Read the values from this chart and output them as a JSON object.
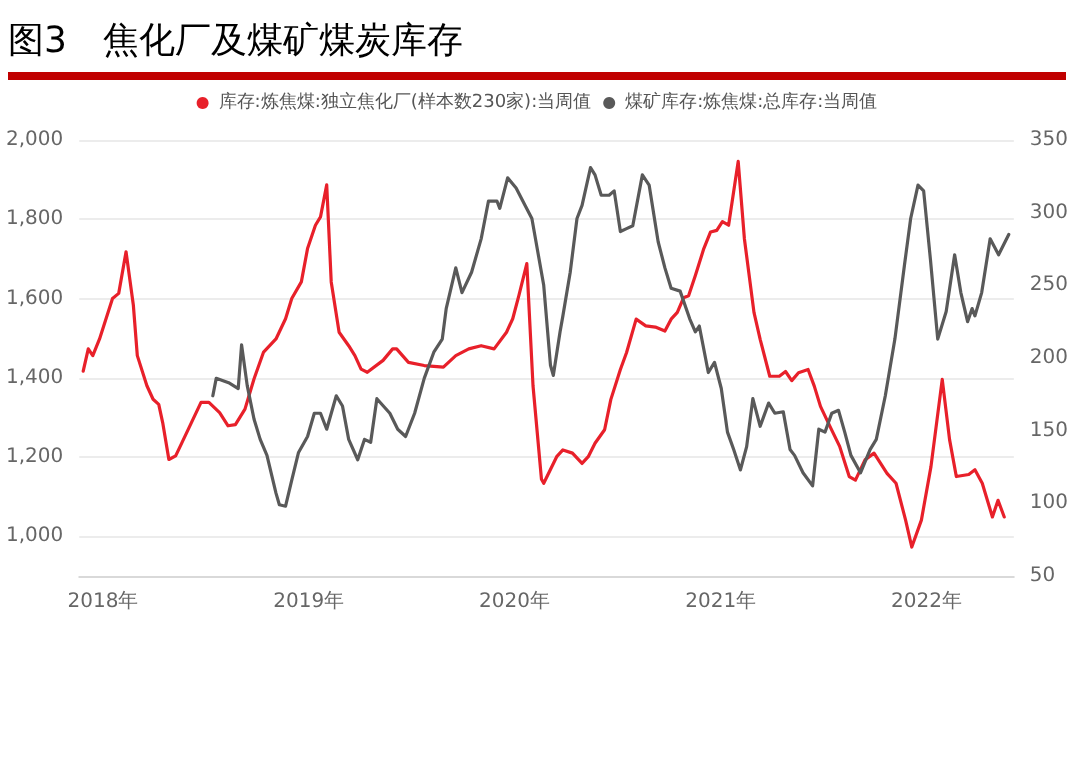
{
  "chart_data": {
    "type": "line",
    "title": "图3　焦化厂及煤矿煤炭库存",
    "xlim": [
      "2017-11-20",
      "2022-06-05"
    ],
    "xticks": [
      {
        "value": "2018-01-01",
        "label": "2018年"
      },
      {
        "value": "2019-01-01",
        "label": "2019年"
      },
      {
        "value": "2020-01-01",
        "label": "2020年"
      },
      {
        "value": "2021-01-01",
        "label": "2021年"
      },
      {
        "value": "2022-01-01",
        "label": "2022年"
      }
    ],
    "ylim": [
      900,
      2000
    ],
    "yticks": [
      {
        "value": 1000,
        "label": "1,000"
      },
      {
        "value": 1200,
        "label": "1,200"
      },
      {
        "value": 1400,
        "label": "1,400"
      },
      {
        "value": 1600,
        "label": "1,600"
      },
      {
        "value": 1800,
        "label": "1,800"
      },
      {
        "value": 2000,
        "label": "2,000"
      }
    ],
    "y2lim": [
      50,
      350
    ],
    "y2ticks": [
      50,
      100,
      150,
      200,
      250,
      300,
      350
    ],
    "grid": "y",
    "legend": "top",
    "marker": "none",
    "line_style": "solid",
    "series": [
      {
        "name": "库存:炼焦煤:独立焦化厂(样本数230家):当周值",
        "color": "#e8202a",
        "x": [
          "2017-11-27",
          "2017-12-06",
          "2017-12-14",
          "2017-12-26",
          "2018-01-18",
          "2018-01-29",
          "2018-02-11",
          "2018-02-24",
          "2018-03-03",
          "2018-03-20",
          "2018-03-31",
          "2018-04-10",
          "2018-04-17",
          "2018-04-28",
          "2018-05-10",
          "2018-05-21",
          "2018-06-07",
          "2018-06-24",
          "2018-07-08",
          "2018-07-27",
          "2018-08-11",
          "2018-08-24",
          "2018-09-10",
          "2018-09-26",
          "2018-10-13",
          "2018-11-04",
          "2018-11-21",
          "2018-12-02",
          "2018-12-19",
          "2018-12-30",
          "2019-01-13",
          "2019-01-22",
          "2019-02-02",
          "2019-02-10",
          "2019-02-24",
          "2019-03-13",
          "2019-03-24",
          "2019-04-04",
          "2019-04-15",
          "2019-05-13",
          "2019-05-30",
          "2019-06-06",
          "2019-06-27",
          "2019-07-25",
          "2019-08-28",
          "2019-09-19",
          "2019-10-12",
          "2019-11-03",
          "2019-11-26",
          "2019-12-18",
          "2019-12-29",
          "2020-01-09",
          "2020-01-23",
          "2020-02-03",
          "2020-02-18",
          "2020-02-22",
          "2020-03-16",
          "2020-03-27",
          "2020-04-13",
          "2020-04-30",
          "2020-05-11",
          "2020-05-23",
          "2020-06-09",
          "2020-06-20",
          "2020-07-07",
          "2020-07-18",
          "2020-08-04",
          "2020-08-21",
          "2020-09-07",
          "2020-09-24",
          "2020-10-05",
          "2020-10-16",
          "2020-10-27",
          "2020-11-05",
          "2020-11-17",
          "2020-12-02",
          "2020-12-14",
          "2020-12-25",
          "2021-01-04",
          "2021-01-15",
          "2021-02-01",
          "2021-02-12",
          "2021-03-01",
          "2021-03-12",
          "2021-03-29",
          "2021-04-15",
          "2021-04-26",
          "2021-05-07",
          "2021-05-19",
          "2021-06-05",
          "2021-06-16",
          "2021-06-27",
          "2021-07-14",
          "2021-07-31",
          "2021-08-17",
          "2021-08-28",
          "2021-09-14",
          "2021-09-30",
          "2021-10-23",
          "2021-11-08",
          "2021-11-25",
          "2021-12-06",
          "2021-12-23",
          "2022-01-09",
          "2022-01-29",
          "2022-02-11",
          "2022-02-23",
          "2022-03-17",
          "2022-03-28",
          "2022-04-10",
          "2022-04-28",
          "2022-05-08",
          "2022-05-19"
        ],
        "values": [
          1417,
          1473,
          1456,
          1498,
          1600,
          1613,
          1718,
          1583,
          1456,
          1380,
          1346,
          1333,
          1287,
          1194,
          1203,
          1236,
          1287,
          1338,
          1338,
          1312,
          1279,
          1282,
          1321,
          1397,
          1465,
          1498,
          1549,
          1600,
          1642,
          1726,
          1785,
          1806,
          1887,
          1642,
          1515,
          1481,
          1456,
          1422,
          1414,
          1444,
          1473,
          1473,
          1439,
          1431,
          1427,
          1456,
          1473,
          1481,
          1473,
          1515,
          1549,
          1608,
          1688,
          1380,
          1144,
          1134,
          1201,
          1218,
          1210,
          1184,
          1201,
          1235,
          1269,
          1345,
          1421,
          1464,
          1548,
          1531,
          1528,
          1518,
          1548,
          1565,
          1602,
          1607,
          1658,
          1726,
          1768,
          1772,
          1794,
          1785,
          1946,
          1751,
          1565,
          1497,
          1404,
          1404,
          1416,
          1393,
          1413,
          1421,
          1379,
          1328,
          1277,
          1227,
          1151,
          1142,
          1193,
          1210,
          1159,
          1134,
          1041,
          973,
          1041,
          1176,
          1396,
          1244,
          1151,
          1156,
          1168,
          1134,
          1049,
          1091,
          1049
        ]
      },
      {
        "name": "煤矿库存:炼焦煤:总库存:当周值",
        "color": "#595959",
        "axis": "y2",
        "x": [
          "2018-07-15",
          "2018-07-21",
          "2018-08-12",
          "2018-08-29",
          "2018-09-04",
          "2018-09-14",
          "2018-09-26",
          "2018-10-07",
          "2018-10-19",
          "2018-11-04",
          "2018-11-10",
          "2018-11-21",
          "2018-12-02",
          "2018-12-14",
          "2018-12-30",
          "2019-01-11",
          "2019-01-22",
          "2019-02-02",
          "2019-02-19",
          "2019-03-02",
          "2019-03-13",
          "2019-03-29",
          "2019-04-10",
          "2019-04-21",
          "2019-05-02",
          "2019-05-25",
          "2019-06-08",
          "2019-06-22",
          "2019-07-08",
          "2019-07-25",
          "2019-08-11",
          "2019-08-26",
          "2019-09-02",
          "2019-09-19",
          "2019-09-30",
          "2019-10-17",
          "2019-11-03",
          "2019-11-16",
          "2019-12-01",
          "2019-12-06",
          "2019-12-20",
          "2020-01-04",
          "2020-01-20",
          "2020-02-01",
          "2020-02-22",
          "2020-03-05",
          "2020-03-10",
          "2020-03-22",
          "2020-03-27",
          "2020-04-09",
          "2020-04-21",
          "2020-04-30",
          "2020-05-15",
          "2020-05-23",
          "2020-06-03",
          "2020-06-17",
          "2020-06-26",
          "2020-07-07",
          "2020-07-18",
          "2020-07-29",
          "2020-08-15",
          "2020-08-27",
          "2020-09-12",
          "2020-09-24",
          "2020-10-05",
          "2020-10-21",
          "2020-11-07",
          "2020-11-17",
          "2020-11-24",
          "2020-12-10",
          "2020-12-21",
          "2021-01-02",
          "2021-01-13",
          "2021-01-24",
          "2021-02-05",
          "2021-02-16",
          "2021-02-27",
          "2021-03-12",
          "2021-03-27",
          "2021-04-07",
          "2021-04-22",
          "2021-05-04",
          "2021-05-12",
          "2021-05-27",
          "2021-06-13",
          "2021-06-24",
          "2021-07-05",
          "2021-07-17",
          "2021-07-29",
          "2021-08-09",
          "2021-08-20",
          "2021-09-06",
          "2021-09-23",
          "2021-10-04",
          "2021-10-20",
          "2021-11-06",
          "2021-11-23",
          "2021-12-04",
          "2021-12-17",
          "2021-12-27",
          "2022-01-08",
          "2022-01-21",
          "2022-02-05",
          "2022-02-20",
          "2022-03-03",
          "2022-03-15",
          "2022-03-23",
          "2022-03-28",
          "2022-04-09",
          "2022-04-24",
          "2022-05-09",
          "2022-05-27"
        ],
        "values": [
          174,
          186,
          183,
          179,
          209,
          181,
          158,
          144,
          133,
          107,
          99,
          98,
          116,
          135,
          146,
          162,
          162,
          151,
          174,
          167,
          144,
          130,
          144,
          142,
          172,
          162,
          151,
          146,
          162,
          186,
          204,
          213,
          234,
          262,
          245,
          259,
          282,
          308,
          308,
          303,
          324,
          317,
          305,
          296,
          250,
          195,
          188,
          218,
          229,
          259,
          296,
          305,
          331,
          326,
          312,
          312,
          315,
          287,
          289,
          291,
          326,
          319,
          280,
          262,
          248,
          246,
          227,
          218,
          222,
          190,
          197,
          179,
          149,
          137,
          123,
          139,
          172,
          153,
          169,
          162,
          163,
          137,
          133,
          121,
          112,
          151,
          149,
          162,
          164,
          149,
          133,
          121,
          137,
          144,
          174,
          213,
          264,
          296,
          319,
          315,
          268,
          213,
          232,
          271,
          245,
          225,
          234,
          229,
          245,
          282,
          271,
          285
        ]
      }
    ]
  }
}
